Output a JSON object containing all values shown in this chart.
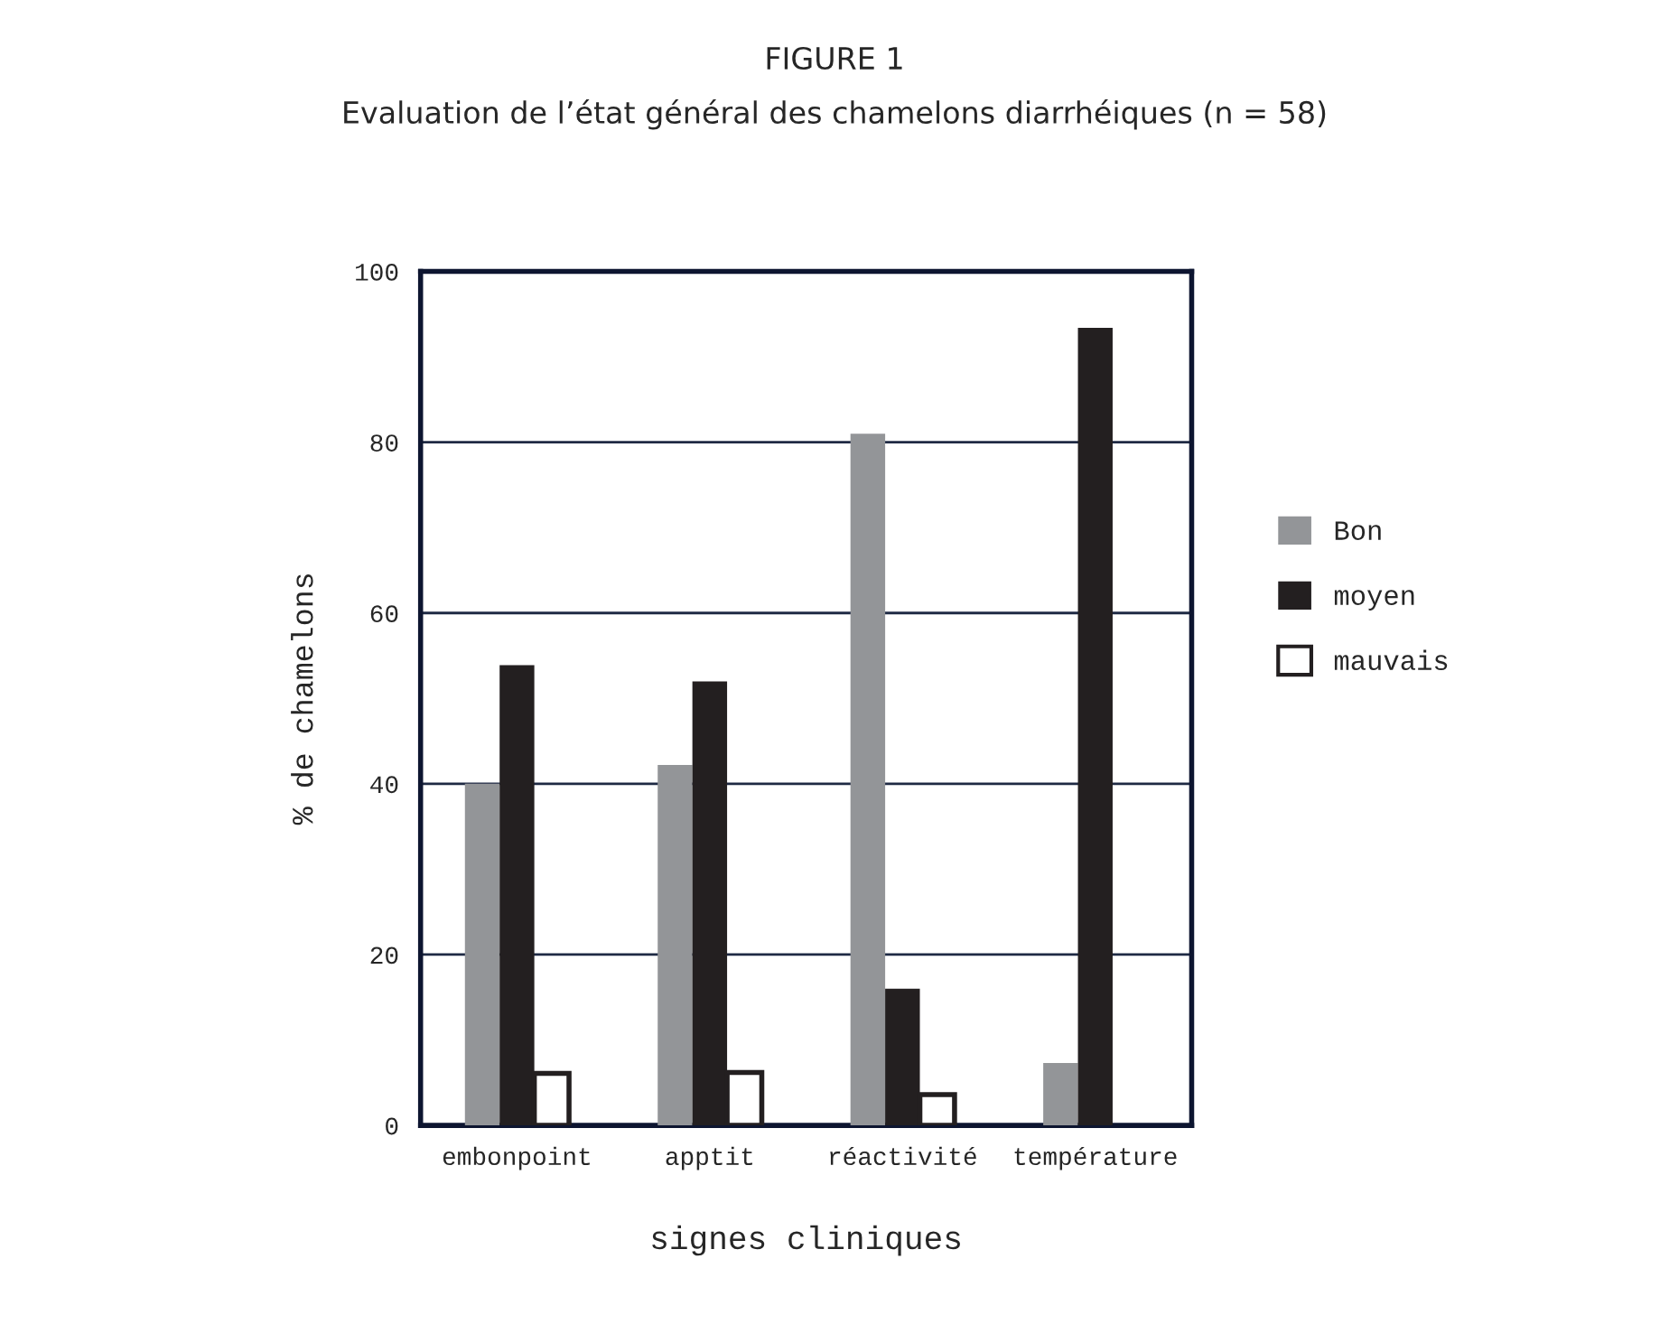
{
  "chart_data": {
    "type": "bar",
    "title": "FIGURE 1",
    "subtitle": "Evaluation de l’état général des chamelons diarrhéiques (n = 58)",
    "xlabel": "signes cliniques",
    "ylabel": "% de chamelons",
    "categories": [
      "embonpoint",
      "apptit",
      "réactivité",
      "température"
    ],
    "series": [
      {
        "name": "Bon",
        "color": "#939598",
        "values": [
          40,
          42.2,
          81,
          7.3
        ]
      },
      {
        "name": "moyen",
        "color": "#231f20",
        "values": [
          53.9,
          52,
          16,
          93.4
        ]
      },
      {
        "name": "mauvais",
        "color": "#ffffff",
        "values": [
          6.1,
          6.2,
          3.6,
          null
        ]
      }
    ],
    "ylim": [
      0,
      100
    ],
    "yticks": [
      0,
      20,
      40,
      60,
      80,
      100
    ],
    "grid": "y",
    "legend": "right"
  }
}
